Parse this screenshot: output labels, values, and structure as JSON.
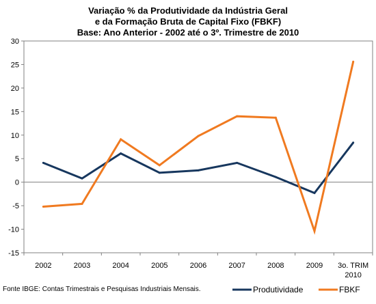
{
  "chart_data": {
    "type": "line",
    "title_lines": [
      "Variação % da Produtividade da Indústria Geral",
      "e da Formação Bruta de Capital Fixo (FBKF)",
      "Base: Ano Anterior - 2002 até o 3º. Trimestre de 2010"
    ],
    "categories": [
      "2002",
      "2003",
      "2004",
      "2005",
      "2006",
      "2007",
      "2008",
      "2009",
      "3o. TRIM 2010"
    ],
    "category_lines": [
      [
        "2002"
      ],
      [
        "2003"
      ],
      [
        "2004"
      ],
      [
        "2005"
      ],
      [
        "2006"
      ],
      [
        "2007"
      ],
      [
        "2008"
      ],
      [
        "2009"
      ],
      [
        "3o. TRIM",
        "2010"
      ]
    ],
    "ylim": [
      -15,
      30
    ],
    "yticks": [
      -15,
      -10,
      -5,
      0,
      5,
      10,
      15,
      20,
      25,
      30
    ],
    "xlabel": "",
    "ylabel": "",
    "grid": false,
    "legend_position": "bottom-right",
    "series": [
      {
        "name": "Produtividade",
        "color": "#17375E",
        "values": [
          4.1,
          0.8,
          6.1,
          2.0,
          2.5,
          4.1,
          1.1,
          -2.3,
          8.4
        ]
      },
      {
        "name": "FBKF",
        "color": "#F07A20",
        "values": [
          -5.2,
          -4.6,
          9.1,
          3.6,
          9.8,
          14.0,
          13.7,
          -10.4,
          25.6
        ]
      }
    ]
  },
  "source_note": "Fonte IBGE: Contas Trimestrais e Pesquisas Industriais Mensais."
}
